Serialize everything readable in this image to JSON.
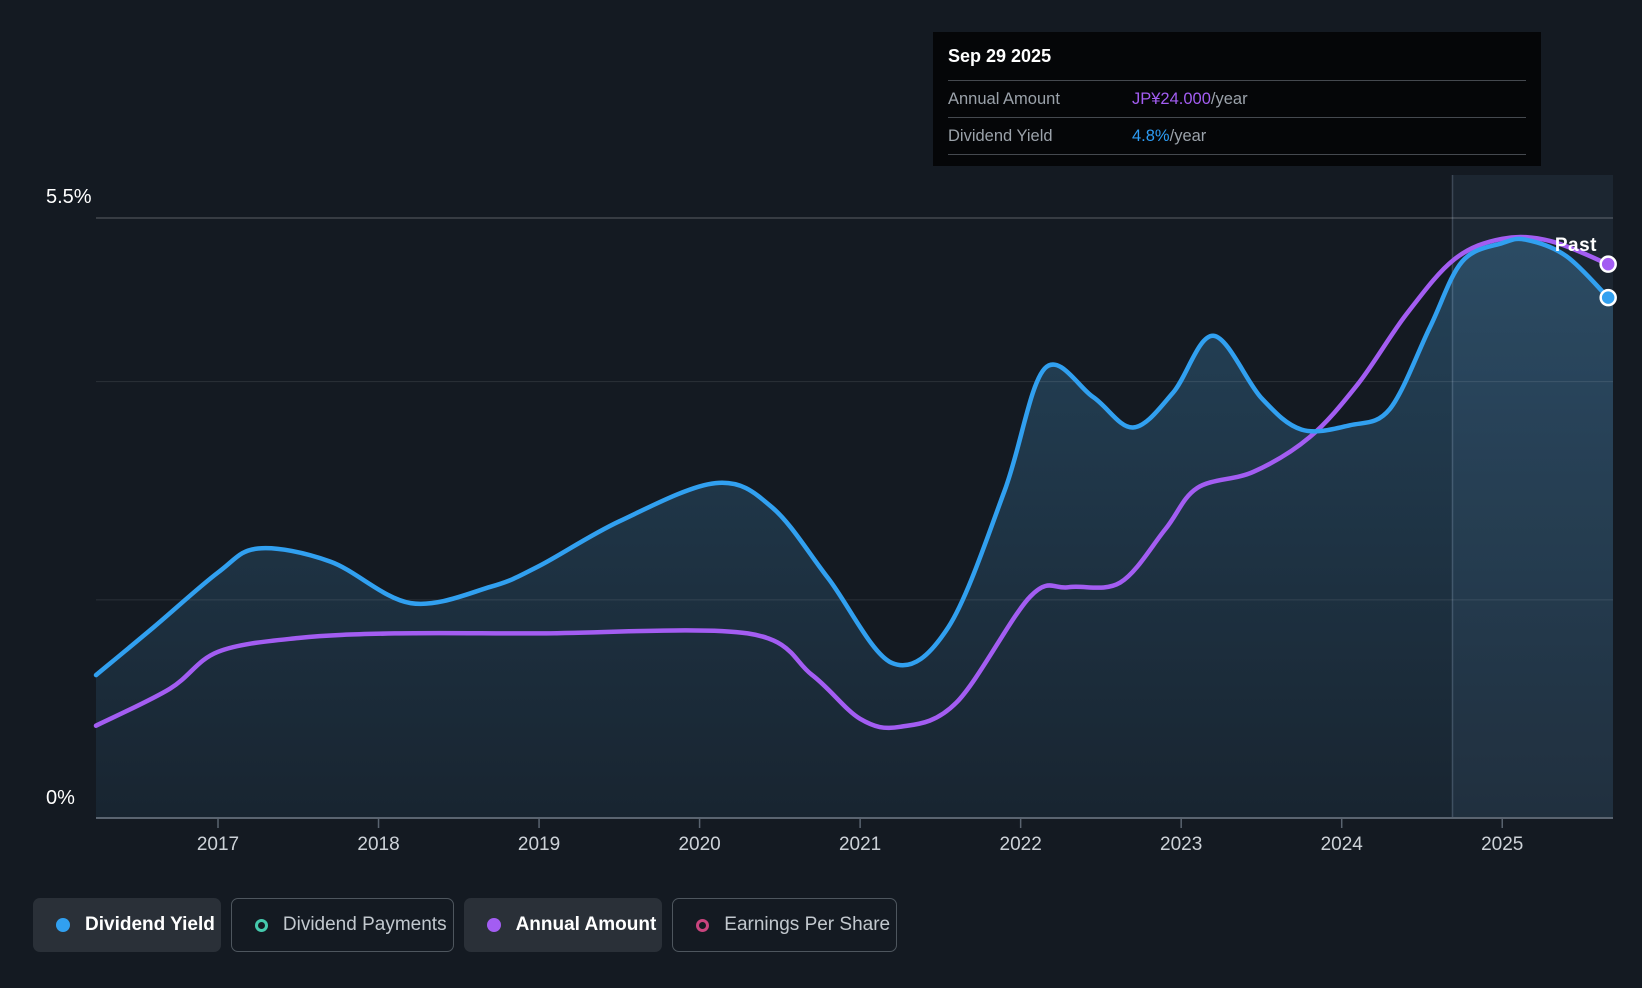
{
  "page": {
    "background": "#141A22"
  },
  "tooltip": {
    "date": "Sep 29 2025",
    "rows": [
      {
        "label": "Annual Amount",
        "value": "JP¥24.000",
        "suffix": "/year",
        "value_color": "#A35DF2"
      },
      {
        "label": "Dividend Yield",
        "value": "4.8%",
        "suffix": "/year",
        "value_color": "#2D9CF4"
      }
    ]
  },
  "chart": {
    "past_label": "Past",
    "y_axis": {
      "top_label": "5.5%",
      "bottom_label": "0%"
    }
  },
  "chart_data": {
    "type": "line",
    "title": "Dividend yield and annual dividend amount over time",
    "x_axis": {
      "ticks": [
        2017,
        2018,
        2019,
        2020,
        2021,
        2022,
        2023,
        2024,
        2025
      ],
      "range": [
        2016.24,
        2025.69
      ]
    },
    "y_axis_left": {
      "label": "Dividend Yield",
      "unit": "%",
      "range": [
        0,
        5.5
      ],
      "gridlines_pct": [
        5.5,
        4,
        2
      ],
      "labeled_ticks": [
        "5.5%",
        "0%"
      ],
      "grid": true
    },
    "y_axis_amount": {
      "label": "Annual Amount",
      "unit": "JP¥",
      "range": [
        0,
        26
      ]
    },
    "past_divider_year": 2024.69,
    "legend_position": "bottom",
    "series": [
      {
        "name": "Annual Amount",
        "unit": "JP¥/year",
        "color": "#A35DF2",
        "fill": false,
        "end_value": "JP¥24.000/year",
        "points": [
          [
            2016.24,
            4.0
          ],
          [
            2016.7,
            5.6
          ],
          [
            2017.0,
            7.2
          ],
          [
            2017.5,
            7.8
          ],
          [
            2018.1,
            8.0
          ],
          [
            2019.0,
            8.0
          ],
          [
            2020.3,
            8.0
          ],
          [
            2020.7,
            6.2
          ],
          [
            2021.0,
            4.3
          ],
          [
            2021.25,
            3.95
          ],
          [
            2021.6,
            5.0
          ],
          [
            2022.06,
            9.6
          ],
          [
            2022.3,
            10.0
          ],
          [
            2022.62,
            10.2
          ],
          [
            2022.9,
            12.5
          ],
          [
            2023.1,
            14.3
          ],
          [
            2023.45,
            15.0
          ],
          [
            2023.8,
            16.5
          ],
          [
            2024.1,
            18.8
          ],
          [
            2024.4,
            21.8
          ],
          [
            2024.7,
            24.2
          ],
          [
            2025.0,
            25.1
          ],
          [
            2025.3,
            25.0
          ],
          [
            2025.66,
            24.0
          ]
        ]
      },
      {
        "name": "Dividend Yield",
        "unit": "%",
        "color": "#31A0F0",
        "fill": true,
        "end_value": "4.8%/year",
        "points": [
          [
            2016.24,
            1.31
          ],
          [
            2016.6,
            1.75
          ],
          [
            2017.0,
            2.25
          ],
          [
            2017.25,
            2.47
          ],
          [
            2017.7,
            2.35
          ],
          [
            2018.2,
            1.97
          ],
          [
            2018.7,
            2.12
          ],
          [
            2019.0,
            2.31
          ],
          [
            2019.5,
            2.72
          ],
          [
            2020.1,
            3.07
          ],
          [
            2020.45,
            2.85
          ],
          [
            2020.8,
            2.2
          ],
          [
            2021.2,
            1.42
          ],
          [
            2021.55,
            1.75
          ],
          [
            2021.9,
            3.0
          ],
          [
            2022.15,
            4.12
          ],
          [
            2022.45,
            3.86
          ],
          [
            2022.7,
            3.58
          ],
          [
            2022.95,
            3.9
          ],
          [
            2023.2,
            4.42
          ],
          [
            2023.5,
            3.85
          ],
          [
            2023.75,
            3.56
          ],
          [
            2024.05,
            3.6
          ],
          [
            2024.3,
            3.75
          ],
          [
            2024.55,
            4.5
          ],
          [
            2024.75,
            5.1
          ],
          [
            2025.0,
            5.27
          ],
          [
            2025.15,
            5.3
          ],
          [
            2025.4,
            5.15
          ],
          [
            2025.66,
            4.77
          ]
        ]
      }
    ]
  },
  "legend": [
    {
      "label": "Dividend Yield",
      "marker": "dot",
      "color": "#31A0F0",
      "active": true
    },
    {
      "label": "Dividend Payments",
      "marker": "ring",
      "color": "#45C9AD",
      "active": false
    },
    {
      "label": "Annual Amount",
      "marker": "dot",
      "color": "#A35DF2",
      "active": true
    },
    {
      "label": "Earnings Per Share",
      "marker": "ring",
      "color": "#C9447E",
      "active": false
    }
  ]
}
